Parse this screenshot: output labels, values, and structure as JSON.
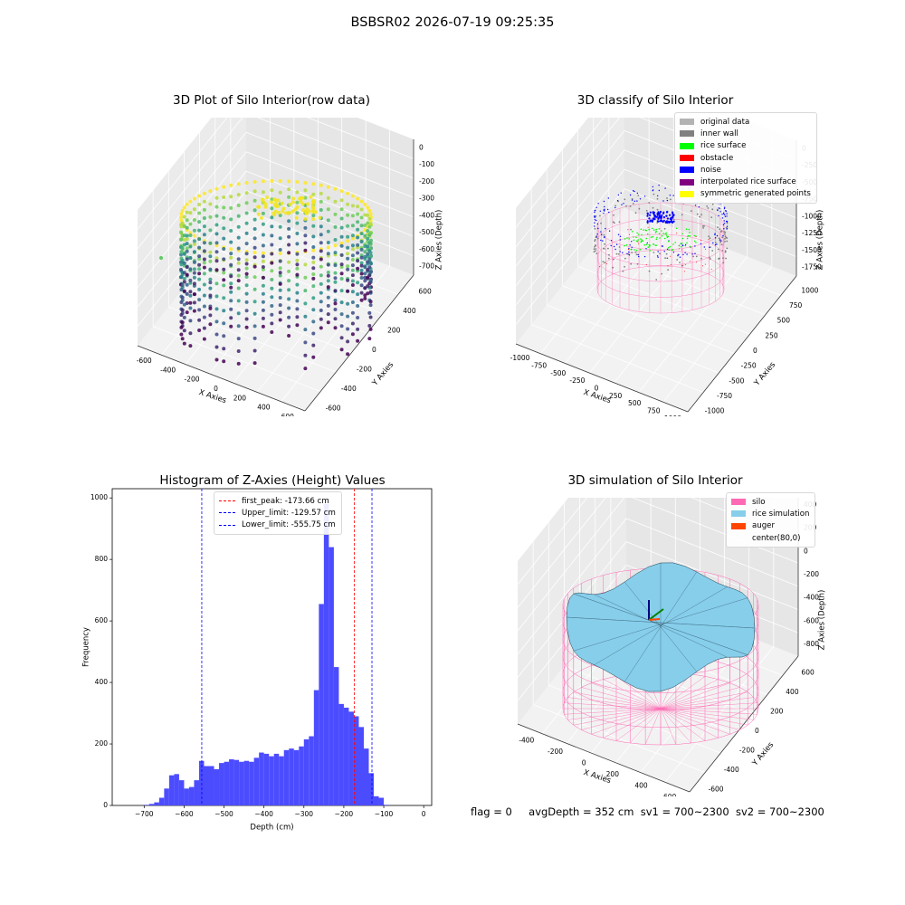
{
  "figure": {
    "suptitle": "BSBSR02 2026-07-19 09:25:35",
    "status_line": {
      "flag": "flag = 0",
      "avg_depth": "avgDepth = 352 cm",
      "sv1": "sv1 = 700~2300",
      "sv2": "sv2 = 700~2300"
    }
  },
  "colors": {
    "original_data": "#b3b3b3",
    "inner_wall": "#808080",
    "rice_surface": "#00ff00",
    "obstacle": "#ff0000",
    "noise": "#0000ff",
    "interpolated_rice_surface": "#800080",
    "symmetric_generated_points": "#ffff00",
    "silo": "#ff69b4",
    "rice_simulation": "#87ceeb",
    "auger": "#ff4500",
    "histogram_bar": "#4c4cff",
    "first_peak_line": "#ff0000",
    "limit_line": "#0000ff"
  },
  "chart_data": [
    {
      "type": "scatter",
      "dimensions": 3,
      "title": "3D Plot of Silo Interior(row data)",
      "xlabel": "X Axies",
      "ylabel": "Y Axies",
      "zlabel": "Z Axies (Depth)",
      "x_ticks": [
        "-600",
        "-400",
        "-200",
        "0",
        "200",
        "400",
        "600"
      ],
      "y_ticks": [
        "-600",
        "-400",
        "-200",
        "0",
        "200",
        "400",
        "600"
      ],
      "z_ticks": [
        "0",
        "-100",
        "-200",
        "-300",
        "-400",
        "-500",
        "-600",
        "-700"
      ],
      "xlim": [
        -700,
        650
      ],
      "ylim": [
        -700,
        700
      ],
      "zlim": [
        -780,
        20
      ],
      "colormap": "viridis",
      "shape": "cylindrical ring of vertical point columns, radius ~600, depth 0 to -780",
      "grid": true
    },
    {
      "type": "scatter",
      "dimensions": 3,
      "title": "3D classify of Silo Interior",
      "xlabel": "X Axies",
      "ylabel": "Y Axies",
      "zlabel": "Z Axies (Depth)",
      "x_ticks": [
        "-1000",
        "-750",
        "-500",
        "-250",
        "0",
        "250",
        "500",
        "750",
        "1000"
      ],
      "y_ticks": [
        "-1000",
        "-750",
        "-500",
        "-250",
        "0",
        "250",
        "500",
        "750",
        "1000"
      ],
      "z_ticks": [
        "0",
        "-250",
        "-500",
        "-750",
        "-1000",
        "-1250",
        "-1500",
        "-1750"
      ],
      "xlim": [
        -1100,
        1100
      ],
      "ylim": [
        -1100,
        1100
      ],
      "zlim": [
        -1850,
        100
      ],
      "legend_position": "top-right",
      "legend": [
        {
          "label": "original data",
          "color": "#b3b3b3"
        },
        {
          "label": "inner wall",
          "color": "#808080"
        },
        {
          "label": "rice surface",
          "color": "#00ff00"
        },
        {
          "label": "obstacle",
          "color": "#ff0000"
        },
        {
          "label": "noise",
          "color": "#0000ff"
        },
        {
          "label": "interpolated rice surface",
          "color": "#800080"
        },
        {
          "label": "symmetric generated points",
          "color": "#ffff00"
        }
      ],
      "grid": true
    },
    {
      "type": "bar",
      "subtype": "histogram",
      "title": "Histogram of Z-Axies (Height) Values",
      "xlabel": "Depth (cm)",
      "ylabel": "Frequency",
      "x_ticks": [
        -700,
        -600,
        -500,
        -400,
        -300,
        -200,
        -100,
        0
      ],
      "y_ticks": [
        0,
        200,
        400,
        600,
        800,
        1000
      ],
      "xlim": [
        -780,
        20
      ],
      "ylim": [
        0,
        1030
      ],
      "bin_width": 12.5,
      "bin_start": -700,
      "values": [
        2,
        5,
        10,
        25,
        55,
        98,
        102,
        82,
        55,
        60,
        82,
        145,
        128,
        128,
        118,
        138,
        142,
        150,
        148,
        142,
        145,
        142,
        155,
        172,
        168,
        160,
        168,
        160,
        180,
        185,
        180,
        192,
        215,
        225,
        375,
        655,
        980,
        840,
        450,
        330,
        318,
        305,
        290,
        255,
        185,
        105,
        30,
        25,
        2
      ],
      "vlines": [
        {
          "label": "first_peak: -173.66 cm",
          "x": -173.66,
          "color": "#ff0000",
          "style": "dashed"
        },
        {
          "label": "Upper_limit: -129.57 cm",
          "x": -129.57,
          "color": "#0000ff",
          "style": "dashed"
        },
        {
          "label": "Lower_limit: -555.75 cm",
          "x": -555.75,
          "color": "#0000ff",
          "style": "dashed"
        }
      ],
      "legend_position": "top-center"
    },
    {
      "type": "area",
      "subtype": "3d-surface",
      "title": "3D simulation of Silo Interior",
      "xlabel": "X Axies",
      "ylabel": "Y Axies",
      "zlabel": "Z Axies (Depth)",
      "x_ticks": [
        "-400",
        "-200",
        "0",
        "200",
        "400",
        "600"
      ],
      "y_ticks": [
        "-600",
        "-400",
        "-200",
        "0",
        "200",
        "400",
        "600"
      ],
      "z_ticks": [
        "400",
        "200",
        "0",
        "-200",
        "-400",
        "-600",
        "-800"
      ],
      "xlim": [
        -600,
        700
      ],
      "ylim": [
        -700,
        700
      ],
      "zlim": [
        -950,
        500
      ],
      "legend_position": "top-right",
      "legend": [
        {
          "label": "silo",
          "color": "#ff69b4"
        },
        {
          "label": "rice simulation",
          "color": "#87ceeb"
        },
        {
          "label": "auger",
          "color": "#ff4500"
        },
        {
          "label": "center(80,0)",
          "color": ""
        }
      ],
      "grid": true
    }
  ]
}
